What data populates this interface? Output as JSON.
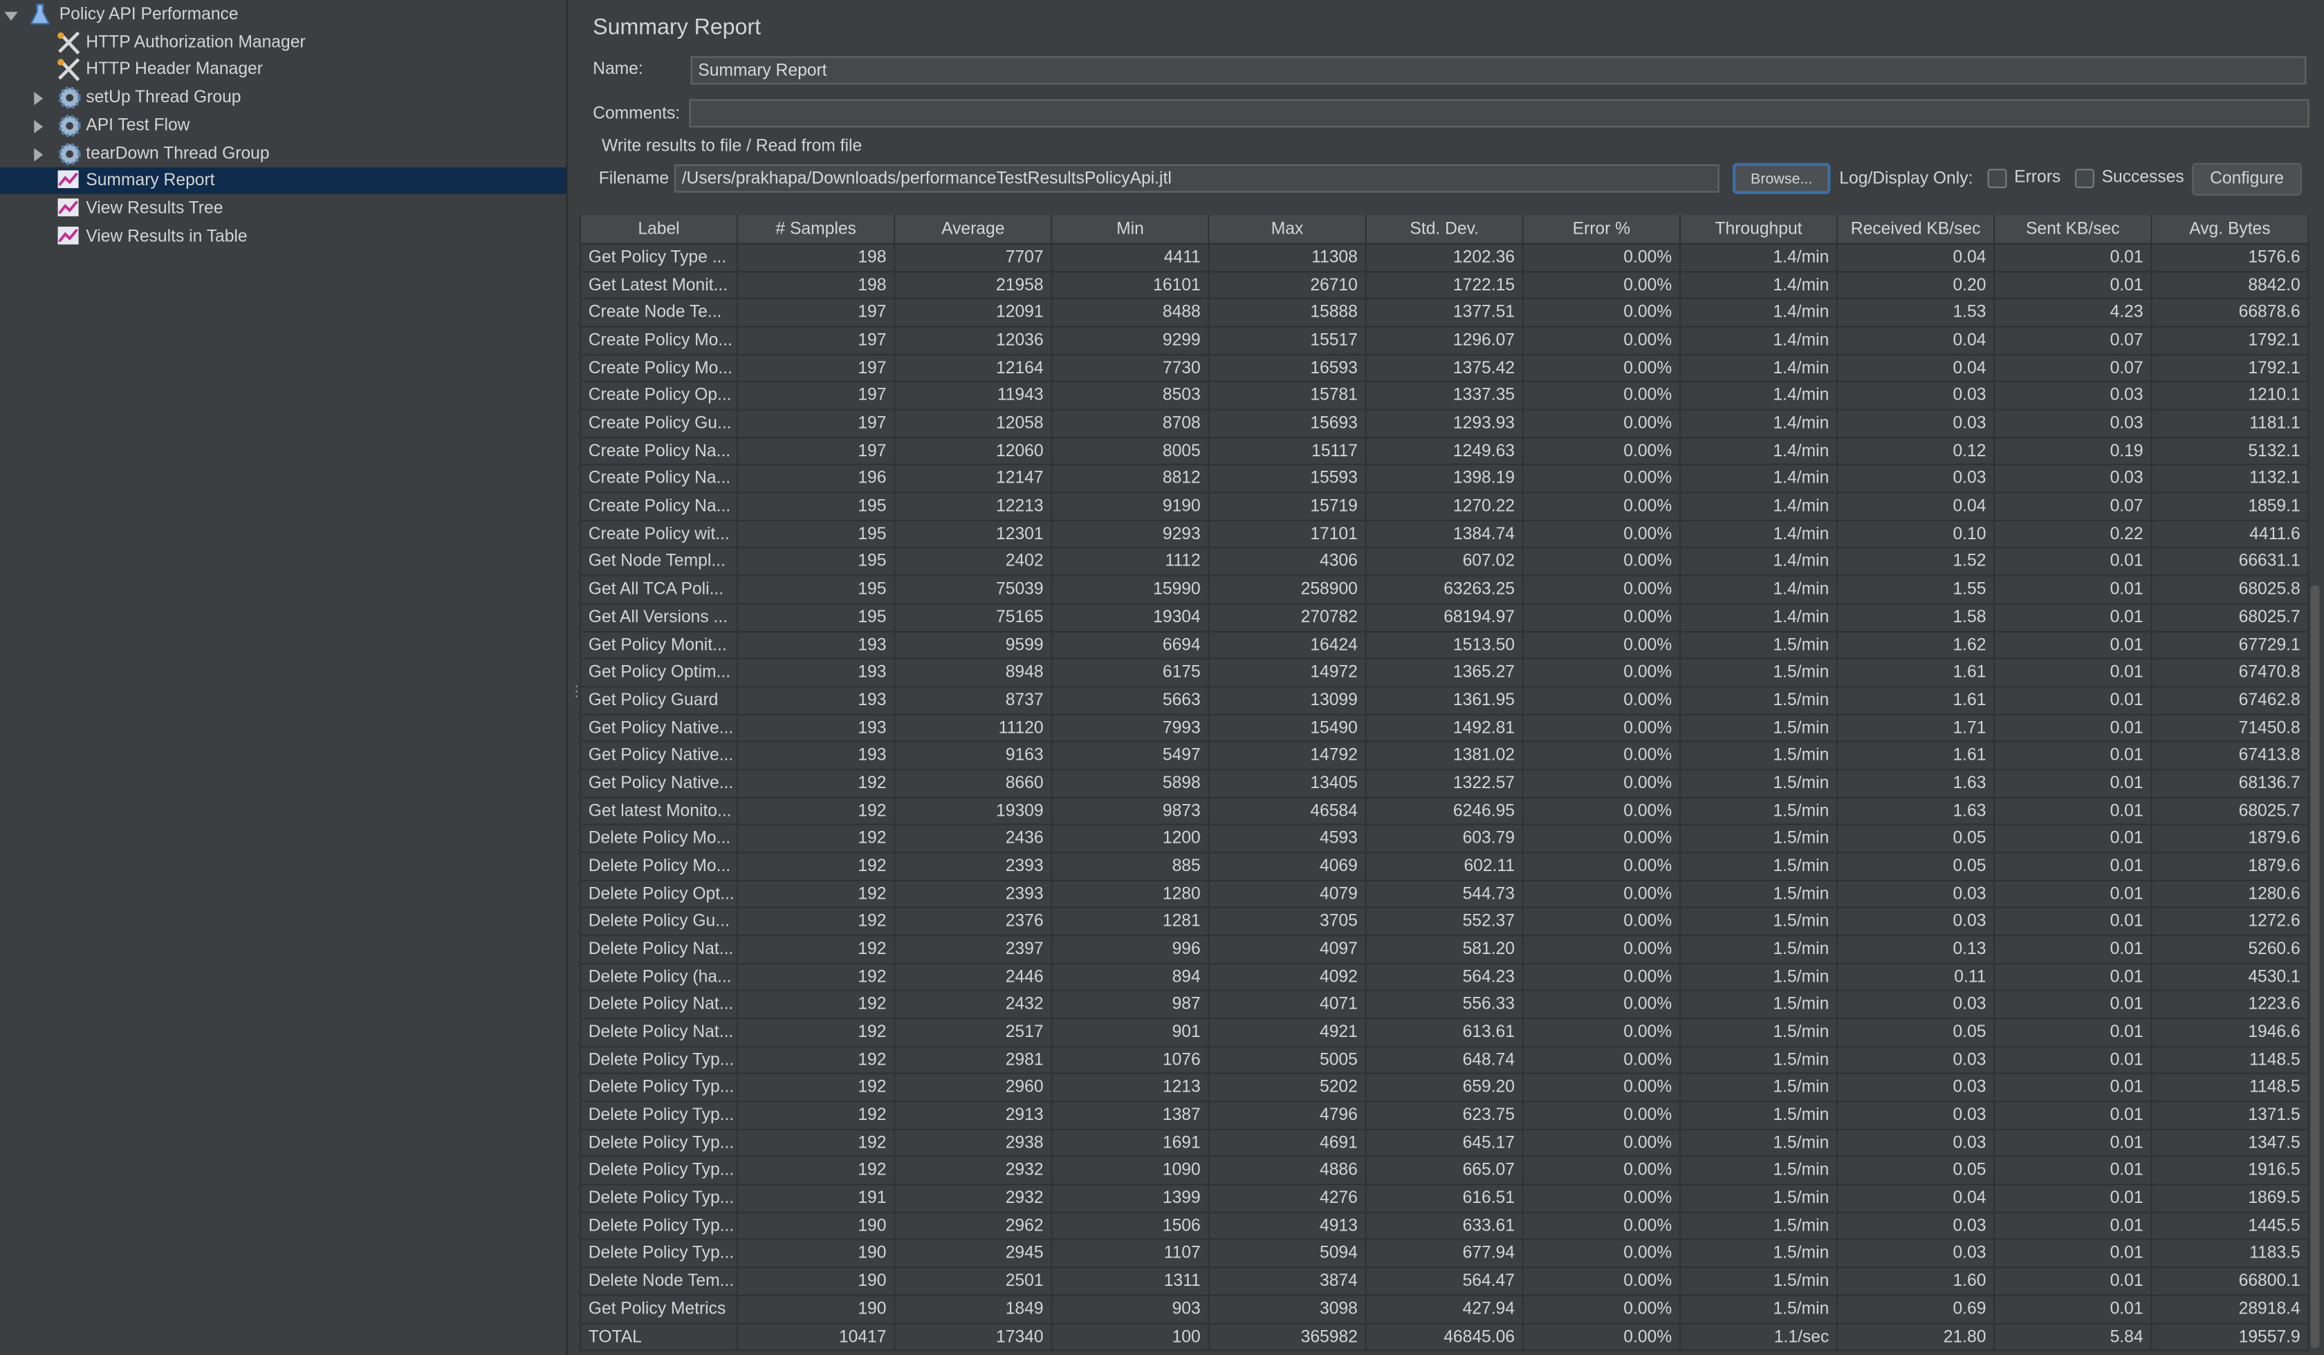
{
  "tree": {
    "items": [
      {
        "label": "Policy API Performance",
        "level": 0,
        "icon": "flask",
        "expander": "open"
      },
      {
        "label": "HTTP Authorization Manager",
        "level": 1,
        "icon": "tool"
      },
      {
        "label": "HTTP Header Manager",
        "level": 1,
        "icon": "tool"
      },
      {
        "label": "setUp Thread Group",
        "level": 1,
        "icon": "gear",
        "expander": "closed"
      },
      {
        "label": "API Test Flow",
        "level": 1,
        "icon": "gear",
        "expander": "closed"
      },
      {
        "label": "tearDown Thread Group",
        "level": 1,
        "icon": "gear",
        "expander": "closed"
      },
      {
        "label": "Summary Report",
        "level": 1,
        "icon": "graph",
        "selected": true
      },
      {
        "label": "View Results Tree",
        "level": 1,
        "icon": "graph"
      },
      {
        "label": "View Results in Table",
        "level": 1,
        "icon": "graph"
      }
    ]
  },
  "panel": {
    "title": "Summary Report",
    "name_label": "Name:",
    "name_value": "Summary Report",
    "comments_label": "Comments:",
    "file_section": "Write results to file / Read from file",
    "filename_label": "Filename",
    "filename_value": "/Users/prakhapa/Downloads/performanceTestResultsPolicyApi.jtl",
    "browse": "Browse...",
    "log_display_label": "Log/Display Only:",
    "errors": "Errors",
    "successes": "Successes",
    "configure": "Configure"
  },
  "table": {
    "columns": [
      "Label",
      "# Samples",
      "Average",
      "Min",
      "Max",
      "Std. Dev.",
      "Error %",
      "Throughput",
      "Received KB/sec",
      "Sent KB/sec",
      "Avg. Bytes"
    ],
    "rows": [
      [
        "Get Policy Type ...",
        "198",
        "7707",
        "4411",
        "11308",
        "1202.36",
        "0.00%",
        "1.4/min",
        "0.04",
        "0.01",
        "1576.6"
      ],
      [
        "Get Latest Monit...",
        "198",
        "21958",
        "16101",
        "26710",
        "1722.15",
        "0.00%",
        "1.4/min",
        "0.20",
        "0.01",
        "8842.0"
      ],
      [
        "Create Node Te...",
        "197",
        "12091",
        "8488",
        "15888",
        "1377.51",
        "0.00%",
        "1.4/min",
        "1.53",
        "4.23",
        "66878.6"
      ],
      [
        "Create Policy Mo...",
        "197",
        "12036",
        "9299",
        "15517",
        "1296.07",
        "0.00%",
        "1.4/min",
        "0.04",
        "0.07",
        "1792.1"
      ],
      [
        "Create Policy Mo...",
        "197",
        "12164",
        "7730",
        "16593",
        "1375.42",
        "0.00%",
        "1.4/min",
        "0.04",
        "0.07",
        "1792.1"
      ],
      [
        "Create Policy Op...",
        "197",
        "11943",
        "8503",
        "15781",
        "1337.35",
        "0.00%",
        "1.4/min",
        "0.03",
        "0.03",
        "1210.1"
      ],
      [
        "Create Policy Gu...",
        "197",
        "12058",
        "8708",
        "15693",
        "1293.93",
        "0.00%",
        "1.4/min",
        "0.03",
        "0.03",
        "1181.1"
      ],
      [
        "Create Policy Na...",
        "197",
        "12060",
        "8005",
        "15117",
        "1249.63",
        "0.00%",
        "1.4/min",
        "0.12",
        "0.19",
        "5132.1"
      ],
      [
        "Create Policy Na...",
        "196",
        "12147",
        "8812",
        "15593",
        "1398.19",
        "0.00%",
        "1.4/min",
        "0.03",
        "0.03",
        "1132.1"
      ],
      [
        "Create Policy Na...",
        "195",
        "12213",
        "9190",
        "15719",
        "1270.22",
        "0.00%",
        "1.4/min",
        "0.04",
        "0.07",
        "1859.1"
      ],
      [
        "Create Policy wit...",
        "195",
        "12301",
        "9293",
        "17101",
        "1384.74",
        "0.00%",
        "1.4/min",
        "0.10",
        "0.22",
        "4411.6"
      ],
      [
        "Get Node Templ...",
        "195",
        "2402",
        "1112",
        "4306",
        "607.02",
        "0.00%",
        "1.4/min",
        "1.52",
        "0.01",
        "66631.1"
      ],
      [
        "Get All TCA Poli...",
        "195",
        "75039",
        "15990",
        "258900",
        "63263.25",
        "0.00%",
        "1.4/min",
        "1.55",
        "0.01",
        "68025.8"
      ],
      [
        "Get All Versions ...",
        "195",
        "75165",
        "19304",
        "270782",
        "68194.97",
        "0.00%",
        "1.4/min",
        "1.58",
        "0.01",
        "68025.7"
      ],
      [
        "Get Policy Monit...",
        "193",
        "9599",
        "6694",
        "16424",
        "1513.50",
        "0.00%",
        "1.5/min",
        "1.62",
        "0.01",
        "67729.1"
      ],
      [
        "Get Policy Optim...",
        "193",
        "8948",
        "6175",
        "14972",
        "1365.27",
        "0.00%",
        "1.5/min",
        "1.61",
        "0.01",
        "67470.8"
      ],
      [
        "Get Policy Guard",
        "193",
        "8737",
        "5663",
        "13099",
        "1361.95",
        "0.00%",
        "1.5/min",
        "1.61",
        "0.01",
        "67462.8"
      ],
      [
        "Get Policy Native...",
        "193",
        "11120",
        "7993",
        "15490",
        "1492.81",
        "0.00%",
        "1.5/min",
        "1.71",
        "0.01",
        "71450.8"
      ],
      [
        "Get Policy Native...",
        "193",
        "9163",
        "5497",
        "14792",
        "1381.02",
        "0.00%",
        "1.5/min",
        "1.61",
        "0.01",
        "67413.8"
      ],
      [
        "Get Policy Native...",
        "192",
        "8660",
        "5898",
        "13405",
        "1322.57",
        "0.00%",
        "1.5/min",
        "1.63",
        "0.01",
        "68136.7"
      ],
      [
        "Get latest Monito...",
        "192",
        "19309",
        "9873",
        "46584",
        "6246.95",
        "0.00%",
        "1.5/min",
        "1.63",
        "0.01",
        "68025.7"
      ],
      [
        "Delete Policy Mo...",
        "192",
        "2436",
        "1200",
        "4593",
        "603.79",
        "0.00%",
        "1.5/min",
        "0.05",
        "0.01",
        "1879.6"
      ],
      [
        "Delete Policy Mo...",
        "192",
        "2393",
        "885",
        "4069",
        "602.11",
        "0.00%",
        "1.5/min",
        "0.05",
        "0.01",
        "1879.6"
      ],
      [
        "Delete Policy Opt...",
        "192",
        "2393",
        "1280",
        "4079",
        "544.73",
        "0.00%",
        "1.5/min",
        "0.03",
        "0.01",
        "1280.6"
      ],
      [
        "Delete Policy Gu...",
        "192",
        "2376",
        "1281",
        "3705",
        "552.37",
        "0.00%",
        "1.5/min",
        "0.03",
        "0.01",
        "1272.6"
      ],
      [
        "Delete Policy Nat...",
        "192",
        "2397",
        "996",
        "4097",
        "581.20",
        "0.00%",
        "1.5/min",
        "0.13",
        "0.01",
        "5260.6"
      ],
      [
        "Delete Policy (ha...",
        "192",
        "2446",
        "894",
        "4092",
        "564.23",
        "0.00%",
        "1.5/min",
        "0.11",
        "0.01",
        "4530.1"
      ],
      [
        "Delete Policy Nat...",
        "192",
        "2432",
        "987",
        "4071",
        "556.33",
        "0.00%",
        "1.5/min",
        "0.03",
        "0.01",
        "1223.6"
      ],
      [
        "Delete Policy Nat...",
        "192",
        "2517",
        "901",
        "4921",
        "613.61",
        "0.00%",
        "1.5/min",
        "0.05",
        "0.01",
        "1946.6"
      ],
      [
        "Delete Policy Typ...",
        "192",
        "2981",
        "1076",
        "5005",
        "648.74",
        "0.00%",
        "1.5/min",
        "0.03",
        "0.01",
        "1148.5"
      ],
      [
        "Delete Policy Typ...",
        "192",
        "2960",
        "1213",
        "5202",
        "659.20",
        "0.00%",
        "1.5/min",
        "0.03",
        "0.01",
        "1148.5"
      ],
      [
        "Delete Policy Typ...",
        "192",
        "2913",
        "1387",
        "4796",
        "623.75",
        "0.00%",
        "1.5/min",
        "0.03",
        "0.01",
        "1371.5"
      ],
      [
        "Delete Policy Typ...",
        "192",
        "2938",
        "1691",
        "4691",
        "645.17",
        "0.00%",
        "1.5/min",
        "0.03",
        "0.01",
        "1347.5"
      ],
      [
        "Delete Policy Typ...",
        "192",
        "2932",
        "1090",
        "4886",
        "665.07",
        "0.00%",
        "1.5/min",
        "0.05",
        "0.01",
        "1916.5"
      ],
      [
        "Delete Policy Typ...",
        "191",
        "2932",
        "1399",
        "4276",
        "616.51",
        "0.00%",
        "1.5/min",
        "0.04",
        "0.01",
        "1869.5"
      ],
      [
        "Delete Policy Typ...",
        "190",
        "2962",
        "1506",
        "4913",
        "633.61",
        "0.00%",
        "1.5/min",
        "0.03",
        "0.01",
        "1445.5"
      ],
      [
        "Delete Policy Typ...",
        "190",
        "2945",
        "1107",
        "5094",
        "677.94",
        "0.00%",
        "1.5/min",
        "0.03",
        "0.01",
        "1183.5"
      ],
      [
        "Delete Node Tem...",
        "190",
        "2501",
        "1311",
        "3874",
        "564.47",
        "0.00%",
        "1.5/min",
        "1.60",
        "0.01",
        "66800.1"
      ],
      [
        "Get Policy Metrics",
        "190",
        "1849",
        "903",
        "3098",
        "427.94",
        "0.00%",
        "1.5/min",
        "0.69",
        "0.01",
        "28918.4"
      ],
      [
        "TOTAL",
        "10417",
        "17340",
        "100",
        "365982",
        "46845.06",
        "0.00%",
        "1.1/sec",
        "21.80",
        "5.84",
        "19557.9"
      ]
    ]
  }
}
